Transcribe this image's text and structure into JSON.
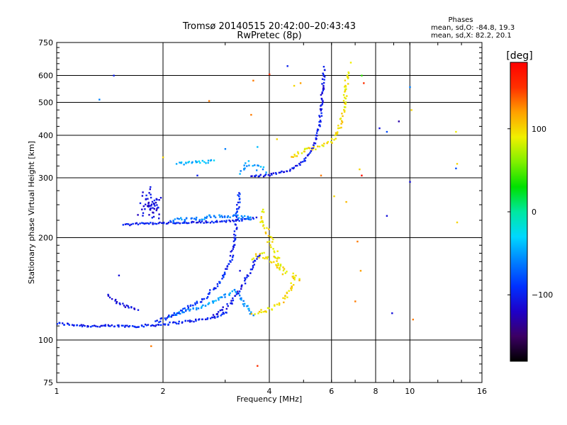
{
  "header": {
    "title_line1": "Tromsø 20140515 20:42:00–20:43:43",
    "title_line2": "RwPretec (8p)",
    "stats_title": "Phases",
    "stats_line1": "mean, sd,O: -84.8, 19.3",
    "stats_line2": "mean, sd,X:  82.2, 20.1"
  },
  "colorbar": {
    "unit": "[deg]",
    "ticks": [
      {
        "value": 100,
        "label": "100"
      },
      {
        "value": 0,
        "label": "0"
      },
      {
        "value": -100,
        "label": "−100"
      }
    ],
    "range": [
      -180,
      180
    ],
    "colors": [
      "#000000",
      "#3c0064",
      "#1e00c8",
      "#0030ff",
      "#0080ff",
      "#00d8ff",
      "#00e8a0",
      "#00e000",
      "#80f000",
      "#f0f000",
      "#ffa000",
      "#ff3000",
      "#ff0000"
    ]
  },
  "chart_data": {
    "type": "scatter",
    "title": "Tromsø 20140515 20:42:00–20:43:43",
    "subtitle": "RwPretec (8p)",
    "xlabel": "Frequency [MHz]",
    "ylabel": "Stationary phase Virtual Height [km]",
    "xscale": "log",
    "yscale": "log",
    "xlim": [
      1,
      16
    ],
    "ylim": [
      75,
      750
    ],
    "grid": true,
    "xticks": [
      {
        "value": 1,
        "label": "1",
        "major": true
      },
      {
        "value": 2,
        "label": "2",
        "major": true
      },
      {
        "value": 4,
        "label": "4",
        "major": true
      },
      {
        "value": 6,
        "label": "6",
        "major": true
      },
      {
        "value": 8,
        "label": "8",
        "major": true
      },
      {
        "value": 10,
        "label": "10",
        "major": true
      },
      {
        "value": 16,
        "label": "16",
        "major": false
      }
    ],
    "yticks": [
      {
        "value": 75,
        "label": "75",
        "major": false
      },
      {
        "value": 100,
        "label": "100",
        "major": true
      },
      {
        "value": 200,
        "label": "200",
        "major": true
      },
      {
        "value": 300,
        "label": "300",
        "major": true
      },
      {
        "value": 400,
        "label": "400",
        "major": true
      },
      {
        "value": 500,
        "label": "500",
        "major": true
      },
      {
        "value": 600,
        "label": "600",
        "major": true
      },
      {
        "value": 750,
        "label": "750",
        "major": false
      }
    ],
    "traces": [
      {
        "id": "low-E-trace",
        "phase": -100,
        "spread": 0.008,
        "pts": [
          [
            1.0,
            112
          ],
          [
            1.1,
            111
          ],
          [
            1.25,
            110
          ],
          [
            1.45,
            110
          ],
          [
            1.7,
            110
          ],
          [
            1.95,
            111
          ],
          [
            2.25,
            113
          ],
          [
            2.6,
            115
          ],
          [
            2.9,
            118
          ],
          [
            3.05,
            122
          ]
        ]
      },
      {
        "id": "low-cyan-trace",
        "phase": -50,
        "spread": 0.01,
        "pts": [
          [
            2.1,
            118
          ],
          [
            2.4,
            123
          ],
          [
            2.7,
            128
          ],
          [
            3.0,
            135
          ],
          [
            3.2,
            140
          ],
          [
            3.4,
            128
          ],
          [
            3.6,
            118
          ]
        ]
      },
      {
        "id": "O-rising-1",
        "phase": -95,
        "spread": 0.01,
        "pts": [
          [
            1.9,
            113
          ],
          [
            2.2,
            120
          ],
          [
            2.6,
            132
          ],
          [
            2.9,
            148
          ],
          [
            3.1,
            170
          ],
          [
            3.2,
            200
          ],
          [
            3.25,
            240
          ],
          [
            3.3,
            275
          ]
        ]
      },
      {
        "id": "O-rising-2",
        "phase": -105,
        "spread": 0.01,
        "pts": [
          [
            2.8,
            118
          ],
          [
            3.1,
            128
          ],
          [
            3.35,
            145
          ],
          [
            3.6,
            165
          ],
          [
            3.75,
            180
          ]
        ]
      },
      {
        "id": "X-low-cluster",
        "phase": 100,
        "spread": 0.015,
        "pts": [
          [
            3.6,
            120
          ],
          [
            3.9,
            122
          ],
          [
            4.2,
            126
          ],
          [
            4.4,
            132
          ],
          [
            4.6,
            140
          ],
          [
            4.7,
            155
          ],
          [
            4.9,
            150
          ]
        ]
      },
      {
        "id": "X-mid-cluster",
        "phase": 95,
        "spread": 0.02,
        "pts": [
          [
            3.6,
            175
          ],
          [
            3.8,
            180
          ],
          [
            4.1,
            170
          ],
          [
            4.4,
            158
          ],
          [
            3.8,
            225
          ],
          [
            3.9,
            240
          ]
        ]
      },
      {
        "id": "left-hook",
        "phase": -110,
        "spread": 0.01,
        "pts": [
          [
            1.4,
            135
          ],
          [
            1.5,
            128
          ],
          [
            1.6,
            125
          ],
          [
            1.7,
            122
          ]
        ]
      },
      {
        "id": "mid-band",
        "phase": -100,
        "spread": 0.006,
        "pts": [
          [
            1.55,
            218
          ],
          [
            1.7,
            220
          ],
          [
            2.0,
            221
          ],
          [
            2.4,
            222
          ],
          [
            2.8,
            223
          ],
          [
            3.1,
            224
          ],
          [
            3.4,
            226
          ],
          [
            3.7,
            230
          ]
        ]
      },
      {
        "id": "mid-band-cyan",
        "phase": -60,
        "spread": 0.012,
        "pts": [
          [
            2.1,
            225
          ],
          [
            2.5,
            228
          ],
          [
            2.9,
            232
          ],
          [
            3.3,
            230
          ],
          [
            3.6,
            228
          ]
        ]
      },
      {
        "id": "mid-left-blob",
        "phase": -110,
        "spread": 0.03,
        "pts": [
          [
            1.75,
            250
          ],
          [
            1.8,
            275
          ],
          [
            1.85,
            240
          ],
          [
            1.9,
            230
          ],
          [
            1.95,
            260
          ],
          [
            1.7,
            235
          ]
        ]
      },
      {
        "id": "F-O-trace",
        "phase": -105,
        "spread": 0.008,
        "pts": [
          [
            3.55,
            305
          ],
          [
            3.8,
            305
          ],
          [
            4.2,
            308
          ],
          [
            4.6,
            318
          ],
          [
            5.0,
            335
          ],
          [
            5.3,
            365
          ],
          [
            5.5,
            410
          ],
          [
            5.6,
            470
          ],
          [
            5.65,
            540
          ],
          [
            5.7,
            600
          ],
          [
            5.72,
            640
          ]
        ]
      },
      {
        "id": "F-X-trace",
        "phase": 95,
        "spread": 0.012,
        "pts": [
          [
            4.6,
            345
          ],
          [
            5.0,
            360
          ],
          [
            5.6,
            370
          ],
          [
            6.0,
            385
          ],
          [
            6.3,
            420
          ],
          [
            6.5,
            480
          ],
          [
            6.6,
            560
          ],
          [
            6.65,
            620
          ]
        ]
      },
      {
        "id": "F-cyan-low",
        "phase": -50,
        "spread": 0.02,
        "pts": [
          [
            3.3,
            310
          ],
          [
            3.5,
            330
          ],
          [
            3.7,
            320
          ],
          [
            3.9,
            315
          ]
        ]
      },
      {
        "id": "upper-left-band",
        "phase": -40,
        "spread": 0.01,
        "pts": [
          [
            2.2,
            330
          ],
          [
            2.5,
            334
          ],
          [
            2.8,
            336
          ]
        ]
      }
    ],
    "scatter": [
      {
        "x": 1.45,
        "y": 600,
        "phase": -100
      },
      {
        "x": 1.32,
        "y": 510,
        "phase": -60
      },
      {
        "x": 2.7,
        "y": 505,
        "phase": 130
      },
      {
        "x": 3.55,
        "y": 460,
        "phase": 130
      },
      {
        "x": 3.6,
        "y": 580,
        "phase": 130
      },
      {
        "x": 4.0,
        "y": 605,
        "phase": 150
      },
      {
        "x": 4.5,
        "y": 640,
        "phase": -100
      },
      {
        "x": 4.7,
        "y": 560,
        "phase": 100
      },
      {
        "x": 4.9,
        "y": 570,
        "phase": 120
      },
      {
        "x": 6.8,
        "y": 655,
        "phase": 90
      },
      {
        "x": 7.3,
        "y": 600,
        "phase": 40
      },
      {
        "x": 7.4,
        "y": 570,
        "phase": 150
      },
      {
        "x": 8.2,
        "y": 420,
        "phase": -110
      },
      {
        "x": 8.6,
        "y": 410,
        "phase": -80
      },
      {
        "x": 9.3,
        "y": 440,
        "phase": -130
      },
      {
        "x": 10.0,
        "y": 555,
        "phase": -60
      },
      {
        "x": 10.1,
        "y": 475,
        "phase": 100
      },
      {
        "x": 13.5,
        "y": 410,
        "phase": 90
      },
      {
        "x": 13.6,
        "y": 330,
        "phase": 100
      },
      {
        "x": 13.5,
        "y": 320,
        "phase": -80
      },
      {
        "x": 13.6,
        "y": 222,
        "phase": 100
      },
      {
        "x": 10.0,
        "y": 292,
        "phase": -110
      },
      {
        "x": 8.6,
        "y": 232,
        "phase": -110
      },
      {
        "x": 7.2,
        "y": 318,
        "phase": 100
      },
      {
        "x": 7.3,
        "y": 305,
        "phase": 170
      },
      {
        "x": 7.1,
        "y": 195,
        "phase": 130
      },
      {
        "x": 7.25,
        "y": 160,
        "phase": 120
      },
      {
        "x": 8.9,
        "y": 120,
        "phase": -110
      },
      {
        "x": 10.2,
        "y": 115,
        "phase": 130
      },
      {
        "x": 7.0,
        "y": 130,
        "phase": 130
      },
      {
        "x": 1.85,
        "y": 96,
        "phase": 130
      },
      {
        "x": 3.7,
        "y": 84,
        "phase": 150
      },
      {
        "x": 1.5,
        "y": 155,
        "phase": -110
      },
      {
        "x": 3.3,
        "y": 160,
        "phase": -110
      },
      {
        "x": 2.5,
        "y": 305,
        "phase": -100
      },
      {
        "x": 2.0,
        "y": 345,
        "phase": 100
      },
      {
        "x": 3.0,
        "y": 365,
        "phase": -60
      },
      {
        "x": 6.1,
        "y": 265,
        "phase": 100
      },
      {
        "x": 6.6,
        "y": 255,
        "phase": 110
      },
      {
        "x": 5.6,
        "y": 305,
        "phase": 130
      },
      {
        "x": 3.7,
        "y": 370,
        "phase": -40
      },
      {
        "x": 4.2,
        "y": 390,
        "phase": 100
      }
    ]
  }
}
